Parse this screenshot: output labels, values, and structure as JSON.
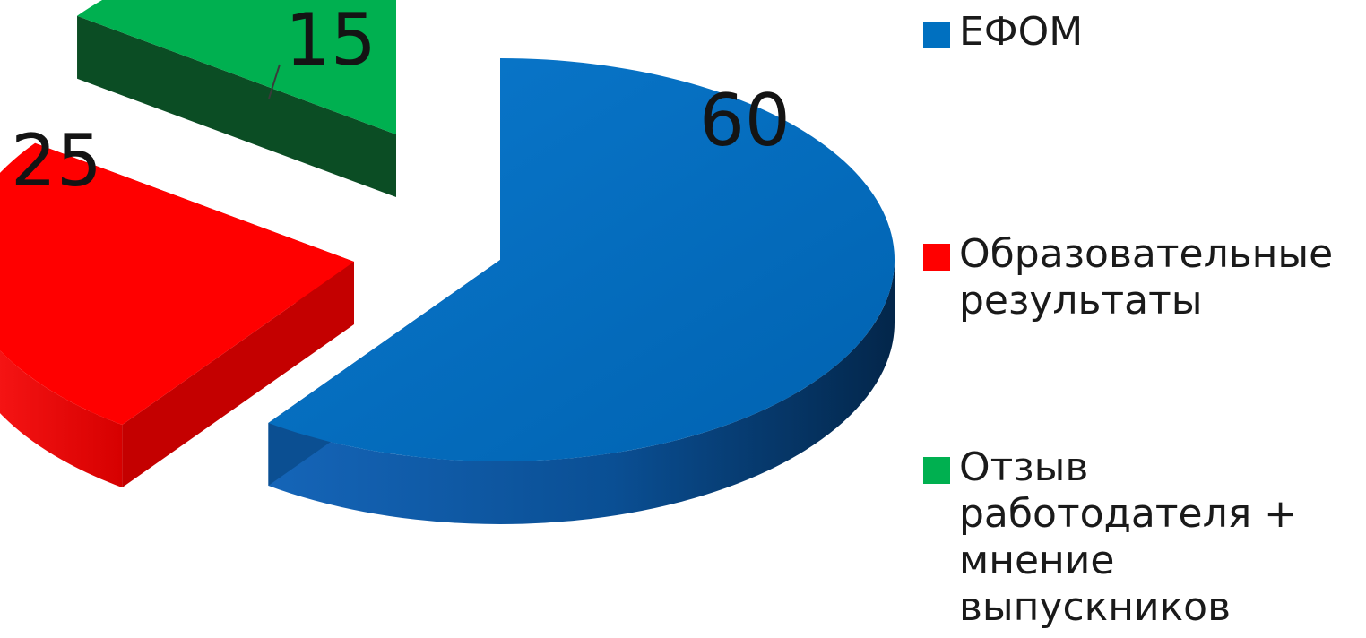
{
  "chart_data": {
    "type": "pie",
    "title": "",
    "series": [
      {
        "values": [
          60,
          25,
          15
        ]
      }
    ],
    "categories": [
      "ЕФОМ",
      "Образовательные\nрезультаты",
      "Отзыв\nработодателя +\nмнение\nвыпускников"
    ],
    "values": [
      60,
      25,
      15
    ],
    "data_labels": [
      "60",
      "25",
      "15"
    ],
    "colors": [
      "#0070c0",
      "#ff0000",
      "#00b050"
    ],
    "legend_position": "right",
    "style": "3d-exploded"
  }
}
